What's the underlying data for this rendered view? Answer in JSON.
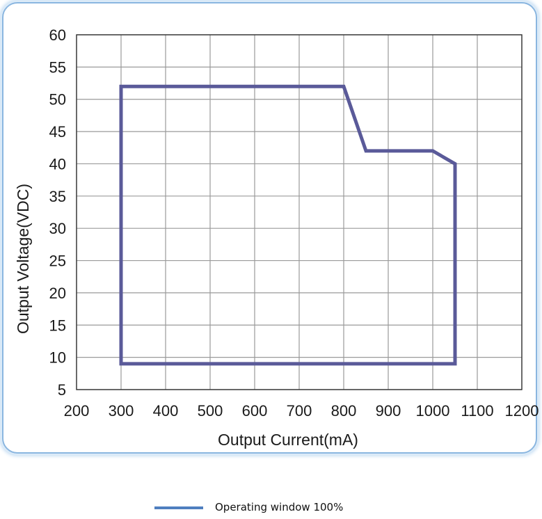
{
  "chart_data": {
    "type": "line",
    "title": "",
    "xlabel": "Output Current(mA)",
    "ylabel": "Output Voltage(VDC)",
    "xlim": [
      200,
      1200
    ],
    "ylim": [
      5,
      60
    ],
    "x_ticks": [
      200,
      300,
      400,
      500,
      600,
      700,
      800,
      900,
      1000,
      1100,
      1200
    ],
    "y_ticks": [
      5,
      10,
      15,
      20,
      25,
      30,
      35,
      40,
      45,
      50,
      55,
      60
    ],
    "grid": true,
    "legend_position": "bottom-center",
    "series": [
      {
        "name": "Operating window 100%",
        "color": "#5a5a99",
        "points": [
          {
            "x": 300,
            "y": 9
          },
          {
            "x": 300,
            "y": 52
          },
          {
            "x": 800,
            "y": 52
          },
          {
            "x": 850,
            "y": 42
          },
          {
            "x": 1000,
            "y": 42
          },
          {
            "x": 1050,
            "y": 40
          },
          {
            "x": 1050,
            "y": 9
          },
          {
            "x": 300,
            "y": 9
          }
        ]
      }
    ]
  },
  "legend": {
    "label": "Operating window 100%",
    "swatch_color": "#4f7fbf"
  }
}
